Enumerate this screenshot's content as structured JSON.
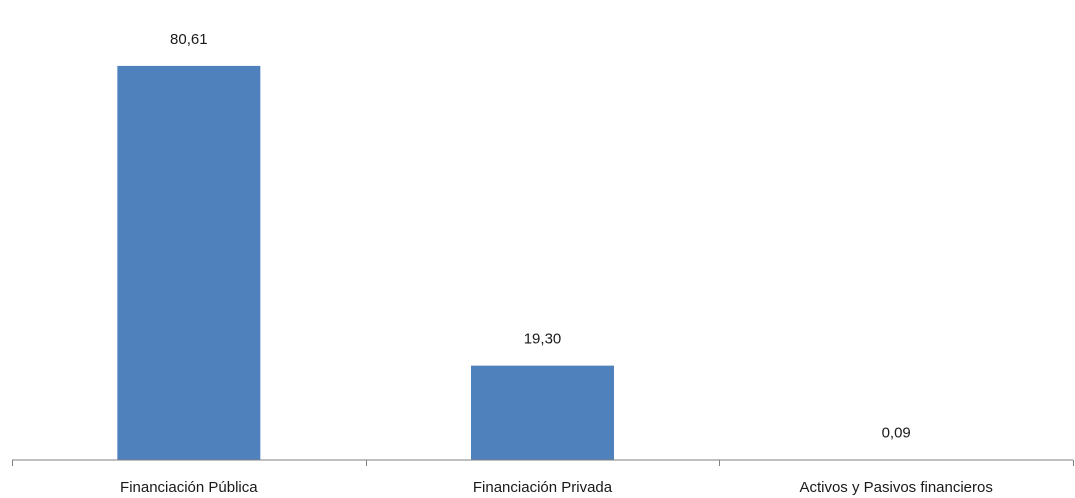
{
  "chart_data": {
    "type": "bar",
    "categories": [
      "Financiación Pública",
      "Financiación Privada",
      "Activos y Pasivos financieros"
    ],
    "values": [
      80.61,
      19.3,
      0.09
    ],
    "value_labels": [
      "80,61",
      "19,30",
      "0,09"
    ],
    "title": "",
    "xlabel": "",
    "ylabel": "",
    "ylim": [
      0,
      90
    ],
    "grid": false,
    "legend": "none",
    "bar_color": "#4f81bd",
    "axis_color": "#808080"
  }
}
